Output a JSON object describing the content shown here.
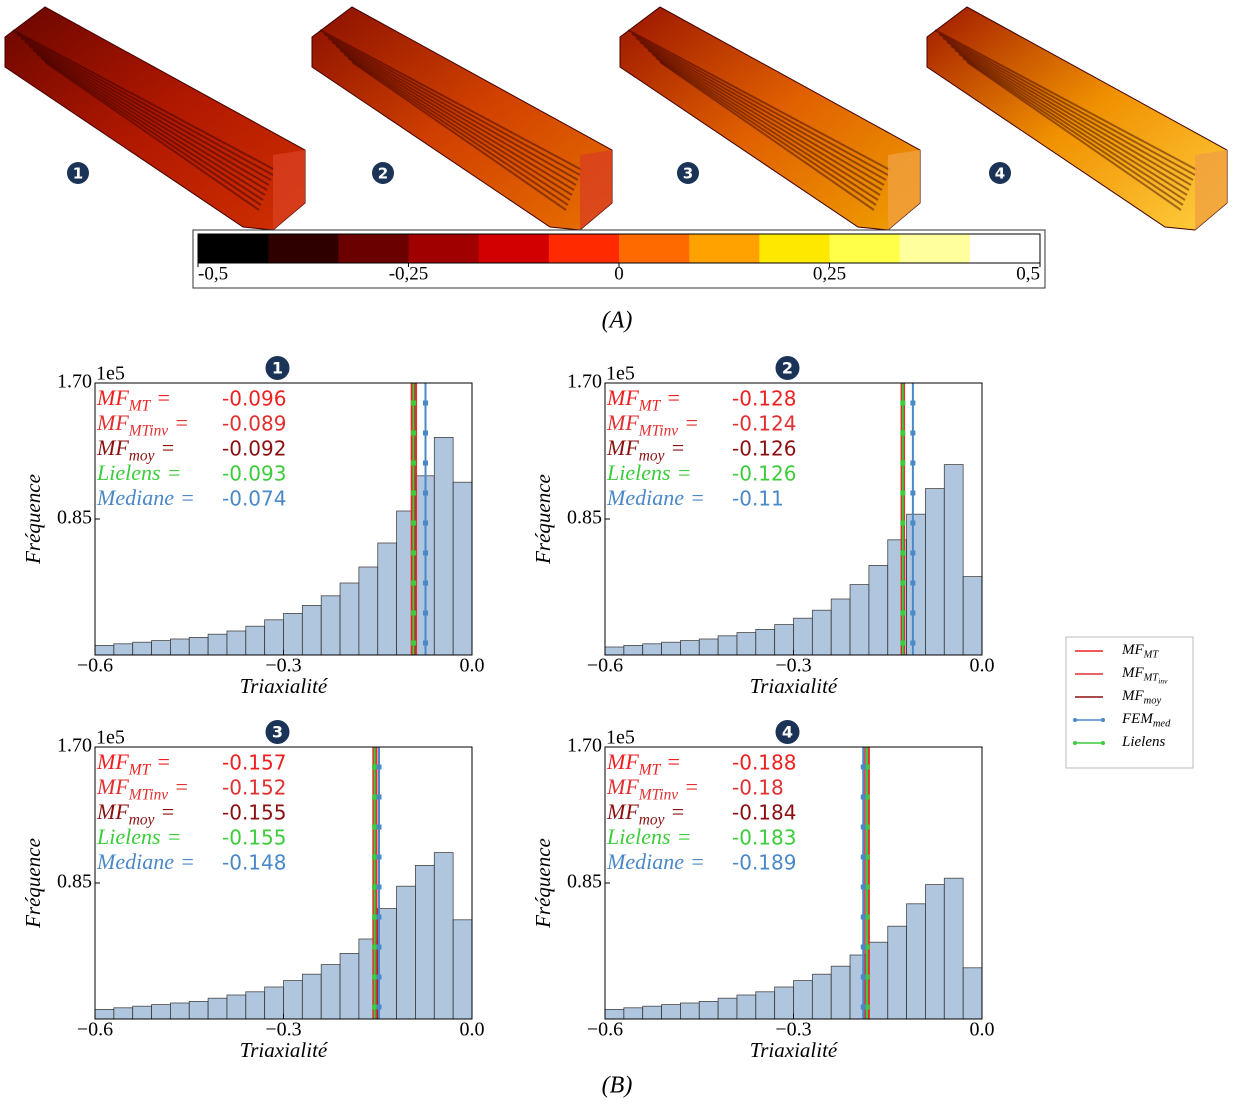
{
  "panel_a": {
    "labels": [
      "1",
      "2",
      "3",
      "4"
    ],
    "colorbar": {
      "colors": [
        "#000000",
        "#2e0000",
        "#6a0000",
        "#a00000",
        "#d20000",
        "#ff2a00",
        "#ff6a00",
        "#ffa200",
        "#ffe800",
        "#ffff4a",
        "#ffff9e",
        "#ffffff"
      ],
      "lim": [
        -0.5,
        0.5
      ],
      "ticks": [
        {
          "value": -0.5,
          "label": "-0,5"
        },
        {
          "value": -0.25,
          "label": "-0,25"
        },
        0,
        {
          "value": 0.25,
          "label": "0,25"
        },
        {
          "value": 0.5,
          "label": "0,5"
        }
      ]
    },
    "caption": "(A)"
  },
  "chart_data": [
    {
      "type": "histogram",
      "badge": "1",
      "ylabel": "Fréquence",
      "xlabel": "Triaxialité",
      "offset_text": "1e5",
      "color": "#a8c0dc",
      "bins": [
        -0.6,
        -0.57,
        -0.54,
        -0.51,
        -0.48,
        -0.45,
        -0.42,
        -0.39,
        -0.36,
        -0.33,
        -0.3,
        -0.27,
        -0.24,
        -0.21,
        -0.18,
        -0.15,
        -0.12,
        -0.09,
        -0.06,
        -0.03,
        0
      ],
      "values": [
        0.06,
        0.07,
        0.08,
        0.09,
        0.1,
        0.11,
        0.13,
        0.15,
        0.18,
        0.22,
        0.26,
        0.31,
        0.37,
        0.45,
        0.55,
        0.7,
        0.9,
        1.12,
        1.36,
        1.08
      ],
      "xlim": [
        -0.6,
        0
      ],
      "ylim": [
        0,
        1.7
      ],
      "xticks": [
        {
          "value": -0.6,
          "label": "−0.6"
        },
        {
          "value": -0.3,
          "label": "−0.3"
        },
        {
          "value": 0,
          "label": "0.0"
        }
      ],
      "yticks": [
        0.85,
        {
          "value": 1.7,
          "label": "1.70"
        }
      ],
      "annotations": [
        {
          "name": "MF",
          "sub": "MT",
          "sign": "=",
          "value": -0.096,
          "color": "#ee2020"
        },
        {
          "name": "MF",
          "sub": "MTinv",
          "sign": "=",
          "value": -0.089,
          "color": "#e03030"
        },
        {
          "name": "MF",
          "sub": "moy",
          "sign": "=",
          "value": -0.092,
          "color": "#8b1010"
        },
        {
          "name": "Lielens",
          "sign": "=",
          "value": -0.093,
          "color": "#3ccc3c",
          "markers": true
        },
        {
          "name": "Mediane",
          "sign": "=",
          "value": -0.074,
          "color": "#4a88c8",
          "markers": true
        }
      ]
    },
    {
      "type": "histogram",
      "badge": "2",
      "ylabel": "Fréquence",
      "xlabel": "Triaxialité",
      "offset_text": "1e5",
      "color": "#a8c0dc",
      "bins": [
        -0.6,
        -0.57,
        -0.54,
        -0.51,
        -0.48,
        -0.45,
        -0.42,
        -0.39,
        -0.36,
        -0.33,
        -0.3,
        -0.27,
        -0.24,
        -0.21,
        -0.18,
        -0.15,
        -0.12,
        -0.09,
        -0.06,
        -0.03,
        0
      ],
      "values": [
        0.05,
        0.06,
        0.07,
        0.08,
        0.09,
        0.1,
        0.12,
        0.14,
        0.16,
        0.19,
        0.23,
        0.28,
        0.35,
        0.44,
        0.56,
        0.72,
        0.88,
        1.04,
        1.19,
        0.49
      ],
      "xlim": [
        -0.6,
        0
      ],
      "ylim": [
        0,
        1.7
      ],
      "xticks": [
        {
          "value": -0.6,
          "label": "−0.6"
        },
        {
          "value": -0.3,
          "label": "−0.3"
        },
        {
          "value": 0,
          "label": "0.0"
        }
      ],
      "yticks": [
        0.85,
        {
          "value": 1.7,
          "label": "1.70"
        }
      ],
      "annotations": [
        {
          "name": "MF",
          "sub": "MT",
          "sign": "=",
          "value": -0.128,
          "color": "#ee2020"
        },
        {
          "name": "MF",
          "sub": "MTinv",
          "sign": "=",
          "value": -0.124,
          "color": "#e03030"
        },
        {
          "name": "MF",
          "sub": "moy",
          "sign": "=",
          "value": -0.126,
          "color": "#8b1010"
        },
        {
          "name": "Lielens",
          "sign": "=",
          "value": -0.126,
          "color": "#3ccc3c",
          "markers": true
        },
        {
          "name": "Mediane",
          "sign": "=",
          "value": -0.11,
          "color": "#4a88c8",
          "markers": true
        }
      ]
    },
    {
      "type": "histogram",
      "badge": "3",
      "ylabel": "Fréquence",
      "xlabel": "Triaxialité",
      "offset_text": "1e5",
      "color": "#a8c0dc",
      "bins": [
        -0.6,
        -0.57,
        -0.54,
        -0.51,
        -0.48,
        -0.45,
        -0.42,
        -0.39,
        -0.36,
        -0.33,
        -0.3,
        -0.27,
        -0.24,
        -0.21,
        -0.18,
        -0.15,
        -0.12,
        -0.09,
        -0.06,
        -0.03,
        0
      ],
      "values": [
        0.06,
        0.07,
        0.08,
        0.09,
        0.1,
        0.11,
        0.13,
        0.15,
        0.17,
        0.2,
        0.24,
        0.28,
        0.34,
        0.41,
        0.5,
        0.69,
        0.83,
        0.96,
        1.04,
        0.62
      ],
      "xlim": [
        -0.6,
        0
      ],
      "ylim": [
        0,
        1.7
      ],
      "xticks": [
        {
          "value": -0.6,
          "label": "−0.6"
        },
        {
          "value": -0.3,
          "label": "−0.3"
        },
        {
          "value": 0,
          "label": "0.0"
        }
      ],
      "yticks": [
        0.85,
        {
          "value": 1.7,
          "label": "1.70"
        }
      ],
      "annotations": [
        {
          "name": "MF",
          "sub": "MT",
          "sign": "=",
          "value": -0.157,
          "color": "#ee2020"
        },
        {
          "name": "MF",
          "sub": "MTinv",
          "sign": "=",
          "value": -0.152,
          "color": "#e03030"
        },
        {
          "name": "MF",
          "sub": "moy",
          "sign": "=",
          "value": -0.155,
          "color": "#8b1010"
        },
        {
          "name": "Lielens",
          "sign": "=",
          "value": -0.155,
          "color": "#3ccc3c",
          "markers": true
        },
        {
          "name": "Mediane",
          "sign": "=",
          "value": -0.148,
          "color": "#4a88c8",
          "markers": true
        }
      ]
    },
    {
      "type": "histogram",
      "badge": "4",
      "ylabel": "Fréquence",
      "xlabel": "Triaxialité",
      "offset_text": "1e5",
      "color": "#a8c0dc",
      "bins": [
        -0.6,
        -0.57,
        -0.54,
        -0.51,
        -0.48,
        -0.45,
        -0.42,
        -0.39,
        -0.36,
        -0.33,
        -0.3,
        -0.27,
        -0.24,
        -0.21,
        -0.18,
        -0.15,
        -0.12,
        -0.09,
        -0.06,
        -0.03,
        0
      ],
      "values": [
        0.06,
        0.07,
        0.08,
        0.09,
        0.1,
        0.11,
        0.13,
        0.15,
        0.17,
        0.2,
        0.24,
        0.28,
        0.33,
        0.4,
        0.48,
        0.58,
        0.72,
        0.84,
        0.88,
        0.32
      ],
      "xlim": [
        -0.6,
        0
      ],
      "ylim": [
        0,
        1.7
      ],
      "xticks": [
        {
          "value": -0.6,
          "label": "−0.6"
        },
        {
          "value": -0.3,
          "label": "−0.3"
        },
        {
          "value": 0,
          "label": "0.0"
        }
      ],
      "yticks": [
        0.85,
        {
          "value": 1.7,
          "label": "1.70"
        }
      ],
      "annotations": [
        {
          "name": "MF",
          "sub": "MT",
          "sign": "=",
          "value": -0.188,
          "color": "#ee2020"
        },
        {
          "name": "MF",
          "sub": "MTinv",
          "sign": "=",
          "value": -0.18,
          "color": "#e03030"
        },
        {
          "name": "MF",
          "sub": "moy",
          "sign": "=",
          "value": -0.184,
          "color": "#8b1010"
        },
        {
          "name": "Lielens",
          "sign": "=",
          "value": -0.183,
          "color": "#3ccc3c",
          "markers": true
        },
        {
          "name": "Mediane",
          "sign": "=",
          "value": -0.189,
          "color": "#4a88c8",
          "markers": true
        }
      ]
    }
  ],
  "legend": {
    "position": "right",
    "entries": [
      {
        "name": "MF",
        "sub": "MT",
        "color": "#ee2020"
      },
      {
        "name": "MF",
        "sub": "MT",
        "subsub": "inv",
        "color": "#e03030"
      },
      {
        "name": "MF",
        "sub": "moy",
        "color": "#8b1010"
      },
      {
        "name": "FEM",
        "sub": "med",
        "color": "#4a88c8",
        "markers": true
      },
      {
        "name": "Lielens",
        "color": "#3ccc3c",
        "markers": true
      }
    ]
  },
  "caption_b": "(B)"
}
